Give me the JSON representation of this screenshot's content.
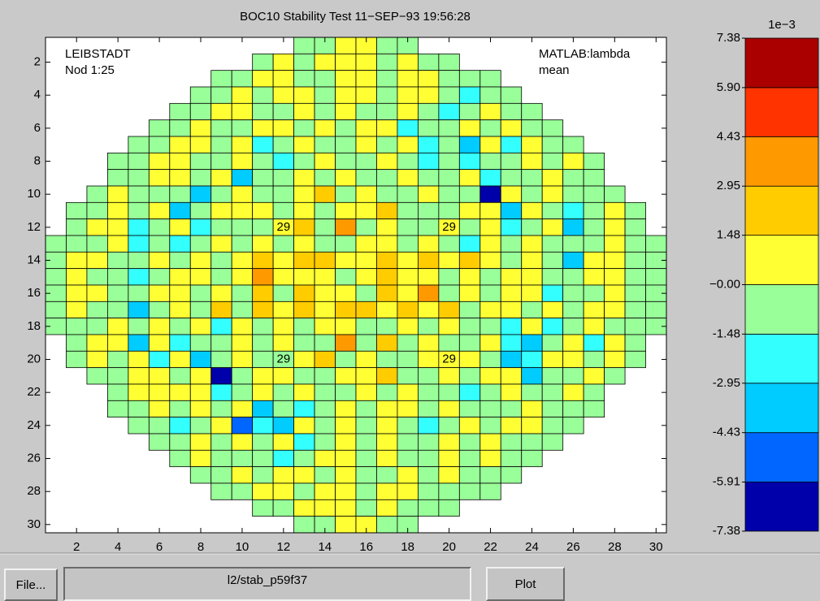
{
  "chart_data": {
    "type": "heatmap",
    "title": "BOC10 Stability Test  11−SEP−93 19:56:28",
    "text_left": [
      "LEIBSTADT",
      "Nod 1:25"
    ],
    "text_right": [
      "MATLAB:lambda",
      "mean"
    ],
    "xlim": [
      0.5,
      30.5
    ],
    "ylim": [
      0.5,
      30.5
    ],
    "xticks": [
      2,
      4,
      6,
      8,
      10,
      12,
      14,
      16,
      18,
      20,
      22,
      24,
      26,
      28,
      30
    ],
    "yticks": [
      2,
      4,
      6,
      8,
      10,
      12,
      14,
      16,
      18,
      20,
      22,
      24,
      26,
      28,
      30
    ],
    "annotations": [
      {
        "text": "29",
        "x": 12,
        "y": 12
      },
      {
        "text": "29",
        "x": 20,
        "y": 12
      },
      {
        "text": "29",
        "x": 12,
        "y": 20
      },
      {
        "text": "29",
        "x": 20,
        "y": 20
      }
    ],
    "colorbar_title": "1e−3",
    "colorbar_ticks": [
      -7.38,
      -5.91,
      -4.43,
      -2.95,
      -1.48,
      {
        "value": 0,
        "label": "−0.00"
      },
      1.48,
      2.95,
      4.43,
      {
        "value": 5.9,
        "label": "5.90"
      },
      7.38
    ],
    "colors": [
      "#0000aa",
      "#0066ff",
      "#00ccff",
      "#33ffff",
      "#99ff99",
      "#ffff33",
      "#ffcc00",
      "#ff9900",
      "#ff3300",
      "#aa0000"
    ],
    "z": [
      [
        null,
        null,
        null,
        null,
        null,
        null,
        null,
        null,
        null,
        null,
        null,
        null,
        -0.7,
        -0.7,
        0.7,
        0.7,
        -0.7,
        -0.7,
        null,
        null,
        null,
        null,
        null,
        null,
        null,
        null,
        null,
        null,
        null,
        null
      ],
      [
        null,
        null,
        null,
        null,
        null,
        null,
        null,
        null,
        null,
        null,
        -0.7,
        0.7,
        -0.7,
        0.7,
        0.7,
        0.7,
        -0.7,
        0.7,
        -0.7,
        -0.7,
        null,
        null,
        null,
        null,
        null,
        null,
        null,
        null,
        null,
        null
      ],
      [
        null,
        null,
        null,
        null,
        null,
        null,
        null,
        null,
        -0.7,
        -0.7,
        0.7,
        0.7,
        -0.7,
        -0.7,
        0.7,
        0.7,
        -0.7,
        0.7,
        0.7,
        -0.7,
        -0.7,
        -0.7,
        null,
        null,
        null,
        null,
        null,
        null,
        null,
        null
      ],
      [
        null,
        null,
        null,
        null,
        null,
        null,
        null,
        -0.7,
        -0.7,
        0.7,
        -0.7,
        0.7,
        0.7,
        -0.7,
        0.7,
        0.7,
        -0.7,
        0.7,
        0.7,
        -0.7,
        -2.2,
        -0.7,
        -0.7,
        null,
        null,
        null,
        null,
        null,
        null,
        null
      ],
      [
        null,
        null,
        null,
        null,
        null,
        null,
        -0.7,
        -0.7,
        0.7,
        0.7,
        -0.7,
        -0.7,
        0.7,
        -0.7,
        0.7,
        -0.7,
        -0.7,
        0.7,
        -0.7,
        -2.2,
        -0.7,
        0.7,
        -0.7,
        -0.7,
        null,
        null,
        null,
        null,
        null,
        null
      ],
      [
        null,
        null,
        null,
        null,
        null,
        -0.7,
        -0.7,
        0.7,
        -0.7,
        -0.7,
        0.7,
        0.7,
        -0.7,
        0.7,
        -0.7,
        0.7,
        0.7,
        -2.2,
        -0.7,
        -0.7,
        0.7,
        -0.7,
        0.7,
        -0.7,
        -0.7,
        null,
        null,
        null,
        null,
        null
      ],
      [
        null,
        null,
        null,
        null,
        -0.7,
        -0.7,
        0.7,
        0.7,
        -0.7,
        0.7,
        -2.2,
        -0.7,
        0.7,
        -0.7,
        -0.7,
        0.7,
        -0.7,
        0.7,
        -2.2,
        -0.7,
        -3.7,
        0.7,
        -2.2,
        0.7,
        -0.7,
        -0.7,
        null,
        null,
        null,
        null
      ],
      [
        null,
        null,
        null,
        -0.7,
        -0.7,
        0.7,
        0.7,
        -0.7,
        -0.7,
        0.7,
        -0.7,
        -2.2,
        -0.7,
        0.7,
        -0.7,
        -0.7,
        0.7,
        -0.7,
        -2.2,
        -0.7,
        -2.2,
        -0.7,
        -0.7,
        0.7,
        -0.7,
        0.7,
        -0.7,
        null,
        null,
        null
      ],
      [
        null,
        null,
        null,
        -0.7,
        -0.7,
        0.7,
        0.7,
        -0.7,
        0.7,
        -3.7,
        -0.7,
        -0.7,
        0.7,
        -0.7,
        0.7,
        -0.7,
        -0.7,
        0.7,
        -0.7,
        -0.7,
        0.7,
        -2.2,
        -0.7,
        -0.7,
        0.7,
        -0.7,
        -0.7,
        null,
        null,
        null
      ],
      [
        null,
        null,
        -0.7,
        0.7,
        -0.7,
        -0.7,
        -0.7,
        -3.7,
        -0.7,
        0.7,
        -0.7,
        -0.7,
        0.7,
        2.2,
        -0.7,
        0.7,
        -0.7,
        -0.7,
        0.7,
        -0.7,
        -0.7,
        -6.6,
        0.7,
        -0.7,
        0.7,
        -0.7,
        -0.7,
        -0.7,
        null,
        null
      ],
      [
        null,
        -0.7,
        -0.7,
        0.7,
        -0.7,
        0.7,
        -3.7,
        -0.7,
        0.7,
        0.7,
        0.7,
        -0.7,
        0.7,
        -0.7,
        0.7,
        0.7,
        2.2,
        -0.7,
        -0.7,
        -0.7,
        0.7,
        0.7,
        -3.7,
        0.7,
        -0.7,
        -2.2,
        -0.7,
        0.7,
        -0.7,
        null
      ],
      [
        null,
        -0.7,
        0.7,
        0.7,
        -2.2,
        -0.7,
        0.7,
        -2.2,
        -0.7,
        -0.7,
        -0.7,
        0.7,
        2.2,
        -0.7,
        3.7,
        -0.7,
        0.7,
        -0.7,
        -0.7,
        0.7,
        -0.7,
        0.7,
        -2.2,
        -0.7,
        0.7,
        -3.7,
        -0.7,
        0.7,
        -0.7,
        null
      ],
      [
        -0.7,
        -0.7,
        -0.7,
        0.7,
        -2.2,
        -0.7,
        -2.2,
        -0.7,
        0.7,
        -0.7,
        0.7,
        -0.7,
        0.7,
        -0.7,
        -0.7,
        0.7,
        0.7,
        -0.7,
        0.7,
        -0.7,
        -2.2,
        0.7,
        -0.7,
        0.7,
        -0.7,
        -0.7,
        -0.7,
        0.7,
        -0.7,
        -0.7
      ],
      [
        -0.7,
        0.7,
        0.7,
        -0.7,
        -0.7,
        0.7,
        -0.7,
        0.7,
        -0.7,
        0.7,
        2.2,
        0.7,
        2.2,
        2.2,
        0.7,
        0.7,
        2.2,
        0.7,
        2.2,
        0.7,
        2.2,
        0.7,
        -0.7,
        0.7,
        -0.7,
        -3.7,
        0.7,
        0.7,
        -0.7,
        -0.7
      ],
      [
        -0.7,
        0.7,
        -0.7,
        -0.7,
        -2.2,
        -0.7,
        0.7,
        0.7,
        -0.7,
        0.7,
        3.7,
        0.7,
        0.7,
        0.7,
        -0.7,
        0.7,
        2.2,
        0.7,
        0.7,
        -0.7,
        0.7,
        -0.7,
        0.7,
        0.7,
        -0.7,
        -0.7,
        0.7,
        0.7,
        -0.7,
        -0.7
      ],
      [
        -0.7,
        0.7,
        0.7,
        -0.7,
        -0.7,
        0.7,
        0.7,
        -0.7,
        0.7,
        -0.7,
        2.2,
        -0.7,
        2.2,
        0.7,
        0.7,
        -0.7,
        2.2,
        0.7,
        3.7,
        -0.7,
        0.7,
        -0.7,
        0.7,
        0.7,
        -2.2,
        -0.7,
        -0.7,
        0.7,
        -0.7,
        -0.7
      ],
      [
        -0.7,
        0.7,
        -0.7,
        -0.7,
        -3.7,
        -0.7,
        0.7,
        -0.7,
        2.2,
        -0.7,
        2.2,
        0.7,
        2.2,
        0.7,
        2.2,
        2.2,
        0.7,
        2.2,
        0.7,
        2.2,
        -0.7,
        0.7,
        0.7,
        -0.7,
        0.7,
        -0.7,
        0.7,
        0.7,
        -0.7,
        -0.7
      ],
      [
        -0.7,
        -0.7,
        -0.7,
        0.7,
        -0.7,
        0.7,
        -0.7,
        0.7,
        -2.2,
        0.7,
        -0.7,
        0.7,
        -0.7,
        0.7,
        0.7,
        -0.7,
        -0.7,
        0.7,
        -0.7,
        0.7,
        -0.7,
        -0.7,
        -2.2,
        0.7,
        -2.2,
        -0.7,
        0.7,
        -0.7,
        -0.7,
        -0.7
      ],
      [
        null,
        -0.7,
        0.7,
        0.7,
        -3.7,
        0.7,
        -2.2,
        -0.7,
        -0.7,
        0.7,
        -0.7,
        0.7,
        -0.7,
        -0.7,
        3.7,
        -0.7,
        2.2,
        -0.7,
        0.7,
        -0.7,
        -0.7,
        0.7,
        -2.2,
        -3.7,
        -0.7,
        0.7,
        -2.2,
        0.7,
        -0.7,
        null
      ],
      [
        null,
        -0.7,
        0.7,
        -0.7,
        0.7,
        -2.2,
        0.7,
        -3.7,
        -0.7,
        0.7,
        -0.7,
        -0.7,
        0.7,
        2.2,
        -0.7,
        0.7,
        -0.7,
        -0.7,
        0.7,
        0.7,
        0.7,
        -0.7,
        -3.7,
        -2.2,
        0.7,
        0.7,
        -0.7,
        0.7,
        -0.7,
        null
      ],
      [
        null,
        null,
        -0.7,
        -0.7,
        0.7,
        0.7,
        -0.7,
        0.7,
        -6.6,
        -0.7,
        0.7,
        0.7,
        -0.7,
        -0.7,
        0.7,
        0.7,
        2.2,
        -0.7,
        -0.7,
        0.7,
        -0.7,
        0.7,
        0.7,
        -3.7,
        -0.7,
        -0.7,
        0.7,
        -0.7,
        null,
        null
      ],
      [
        null,
        null,
        null,
        -0.7,
        0.7,
        0.7,
        0.7,
        0.7,
        -2.2,
        -0.7,
        0.7,
        -0.7,
        0.7,
        -0.7,
        -0.7,
        0.7,
        -0.7,
        0.7,
        -0.7,
        -0.7,
        -2.2,
        -0.7,
        0.7,
        -0.7,
        -0.7,
        0.7,
        -0.7,
        null,
        null,
        null
      ],
      [
        null,
        null,
        null,
        -0.7,
        -0.7,
        0.7,
        -0.7,
        0.7,
        -0.7,
        0.7,
        -3.7,
        -0.7,
        -2.2,
        -0.7,
        0.7,
        -0.7,
        0.7,
        0.7,
        -0.7,
        0.7,
        -0.7,
        -0.7,
        -0.7,
        0.7,
        -0.7,
        -0.7,
        -0.7,
        null,
        null,
        null
      ],
      [
        null,
        null,
        null,
        null,
        -0.7,
        -0.7,
        -2.2,
        -0.7,
        0.7,
        -5.2,
        -2.2,
        -3.7,
        0.7,
        -0.7,
        0.7,
        -0.7,
        0.7,
        -0.7,
        -2.2,
        -0.7,
        0.7,
        -0.7,
        0.7,
        0.7,
        -0.7,
        -0.7,
        null,
        null,
        null,
        null
      ],
      [
        null,
        null,
        null,
        null,
        null,
        -0.7,
        -0.7,
        0.7,
        -0.7,
        0.7,
        -0.7,
        0.7,
        -2.2,
        -0.7,
        0.7,
        -0.7,
        0.7,
        -0.7,
        -0.7,
        0.7,
        -0.7,
        0.7,
        -0.7,
        -0.7,
        -0.7,
        null,
        null,
        null,
        null,
        null
      ],
      [
        null,
        null,
        null,
        null,
        null,
        null,
        -0.7,
        0.7,
        -0.7,
        -0.7,
        -0.7,
        -2.2,
        -0.7,
        0.7,
        0.7,
        -0.7,
        0.7,
        -0.7,
        -0.7,
        0.7,
        -0.7,
        0.7,
        -0.7,
        -0.7,
        null,
        null,
        null,
        null,
        null,
        null
      ],
      [
        null,
        null,
        null,
        null,
        null,
        null,
        null,
        -0.7,
        -0.7,
        0.7,
        -0.7,
        0.7,
        0.7,
        -0.7,
        0.7,
        -0.7,
        -0.7,
        0.7,
        -0.7,
        0.7,
        -0.7,
        -0.7,
        -0.7,
        null,
        null,
        null,
        null,
        null,
        null,
        null
      ],
      [
        null,
        null,
        null,
        null,
        null,
        null,
        null,
        null,
        -0.7,
        -0.7,
        0.7,
        0.7,
        -0.7,
        0.7,
        0.7,
        -0.7,
        0.7,
        0.7,
        -0.7,
        -0.7,
        -0.7,
        -0.7,
        null,
        null,
        null,
        null,
        null,
        null,
        null,
        null
      ],
      [
        null,
        null,
        null,
        null,
        null,
        null,
        null,
        null,
        null,
        null,
        -0.7,
        -0.7,
        0.7,
        0.7,
        0.7,
        -0.7,
        0.7,
        -0.7,
        -0.7,
        -0.7,
        null,
        null,
        null,
        null,
        null,
        null,
        null,
        null,
        null,
        null
      ],
      [
        null,
        null,
        null,
        null,
        null,
        null,
        null,
        null,
        null,
        null,
        null,
        null,
        -0.7,
        -0.7,
        0.7,
        0.7,
        -0.7,
        -0.7,
        null,
        null,
        null,
        null,
        null,
        null,
        null,
        null,
        null,
        null,
        null,
        null
      ]
    ]
  },
  "ui": {
    "file_button": "File...",
    "path_field": "l2/stab_p59f37",
    "plot_button": "Plot"
  }
}
